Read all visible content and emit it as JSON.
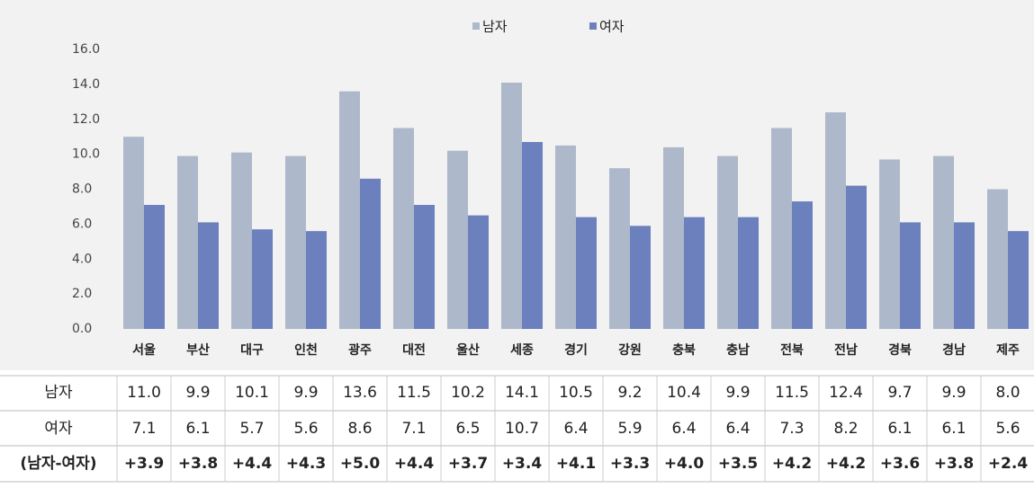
{
  "chart_data": {
    "type": "bar",
    "categories": [
      "서울",
      "부산",
      "대구",
      "인천",
      "광주",
      "대전",
      "울산",
      "세종",
      "경기",
      "강원",
      "충북",
      "충남",
      "전북",
      "전남",
      "경북",
      "경남",
      "제주"
    ],
    "series": [
      {
        "name": "남자",
        "color": "#adb9ca",
        "values": [
          11.0,
          9.9,
          10.1,
          9.9,
          13.6,
          11.5,
          10.2,
          14.1,
          10.5,
          9.2,
          10.4,
          9.9,
          11.5,
          12.4,
          9.7,
          9.9,
          8.0
        ],
        "value_labels": [
          "11.0",
          "9.9",
          "10.1",
          "9.9",
          "13.6",
          "11.5",
          "10.2",
          "14.1",
          "10.5",
          "9.2",
          "10.4",
          "9.9",
          "11.5",
          "12.4",
          "9.7",
          "9.9",
          "8.0"
        ]
      },
      {
        "name": "여자",
        "color": "#6b80bd",
        "values": [
          7.1,
          6.1,
          5.7,
          5.6,
          8.6,
          7.1,
          6.5,
          10.7,
          6.4,
          5.9,
          6.4,
          6.4,
          7.3,
          8.2,
          6.1,
          6.1,
          5.6
        ],
        "value_labels": [
          "7.1",
          "6.1",
          "5.7",
          "5.6",
          "8.6",
          "7.1",
          "6.5",
          "10.7",
          "6.4",
          "5.9",
          "6.4",
          "6.4",
          "7.3",
          "8.2",
          "6.1",
          "6.1",
          "5.6"
        ]
      }
    ],
    "difference": {
      "name": "(남자-여자)",
      "values": [
        3.9,
        3.8,
        4.4,
        4.3,
        5.0,
        4.4,
        3.7,
        3.4,
        4.1,
        3.3,
        4.0,
        3.5,
        4.2,
        4.2,
        3.6,
        3.8,
        2.4
      ],
      "value_labels": [
        "+3.9",
        "+3.8",
        "+4.4",
        "+4.3",
        "+5.0",
        "+4.4",
        "+3.7",
        "+3.4",
        "+4.1",
        "+3.3",
        "+4.0",
        "+3.5",
        "+4.2",
        "+4.2",
        "+3.6",
        "+3.8",
        "+2.4"
      ]
    },
    "ylim": [
      0,
      16
    ],
    "yticks": [
      {
        "value": 0,
        "label": "0.0"
      },
      {
        "value": 2,
        "label": "2.0"
      },
      {
        "value": 4,
        "label": "4.0"
      },
      {
        "value": 6,
        "label": "6.0"
      },
      {
        "value": 8,
        "label": "8.0"
      },
      {
        "value": 10,
        "label": "10.0"
      },
      {
        "value": 12,
        "label": "12.0"
      },
      {
        "value": 14,
        "label": "14.0"
      },
      {
        "value": 16,
        "label": "16.0"
      }
    ],
    "grid": false,
    "legend": "top"
  }
}
